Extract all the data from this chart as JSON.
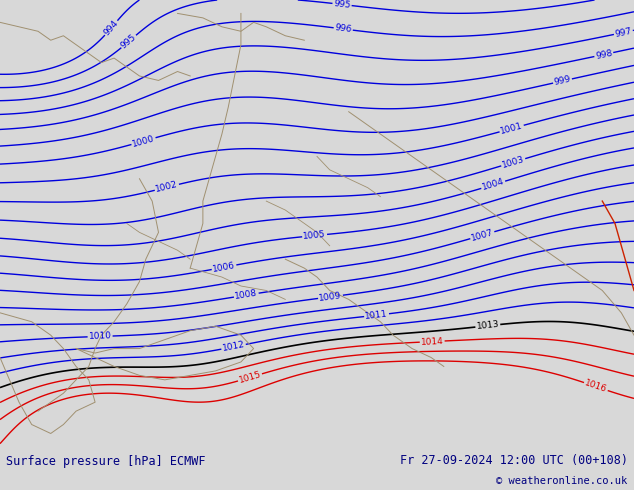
{
  "title_left": "Surface pressure [hPa] ECMWF",
  "title_right": "Fr 27-09-2024 12:00 UTC (00+108)",
  "copyright": "© weatheronline.co.uk",
  "bg_color_main": "#b5e882",
  "contour_color_blue": "#0000dd",
  "contour_color_red": "#dd0000",
  "contour_color_black": "#000000",
  "border_color": "#a09070",
  "text_color": "#000080",
  "footer_bg": "#d8d8d8",
  "figwidth": 6.34,
  "figheight": 4.9,
  "dpi": 100
}
